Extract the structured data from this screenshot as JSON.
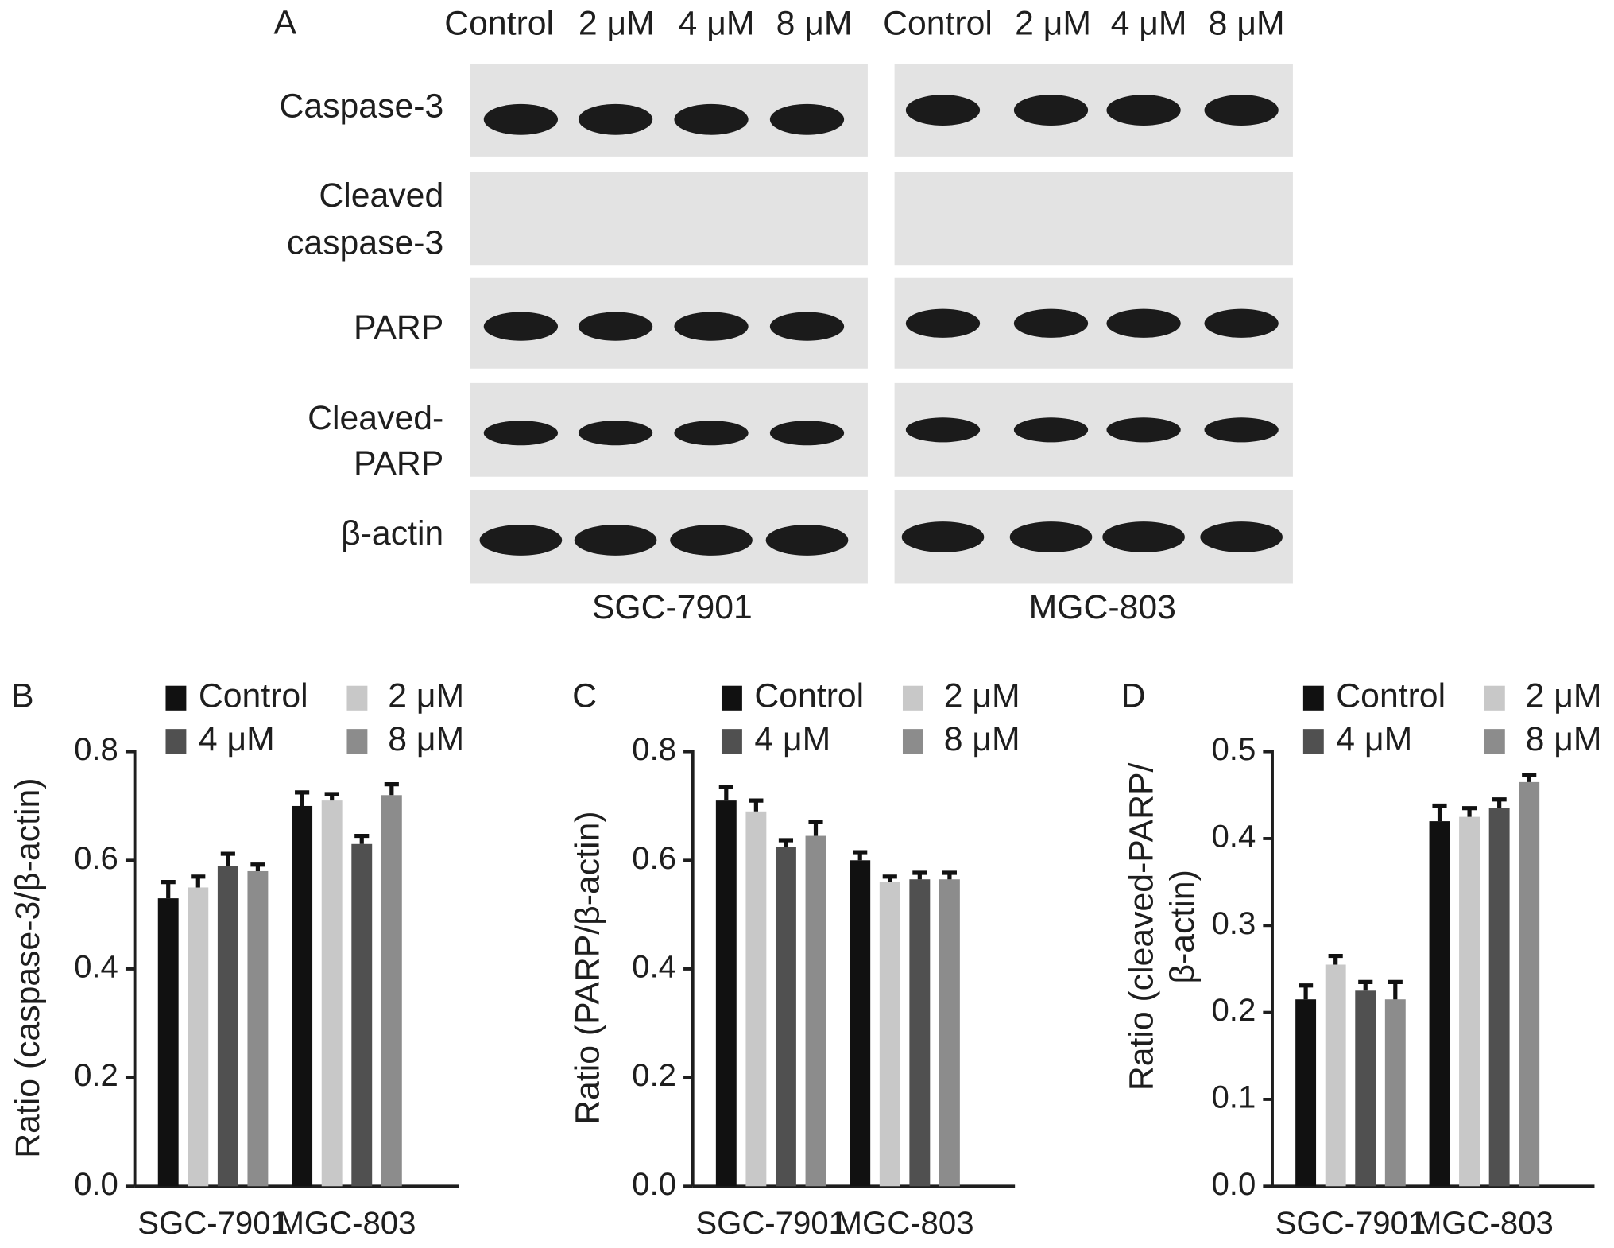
{
  "blot": {
    "panel": "A",
    "lanes": [
      "Control",
      "2 μM",
      "4 μM",
      "8 μM",
      "Control",
      "2 μM",
      "4 μM",
      "8 μM"
    ],
    "rows": [
      [
        "Caspase-3"
      ],
      [
        "Cleaved",
        "caspase-3"
      ],
      [
        "PARP"
      ],
      [
        "Cleaved-",
        "PARP"
      ],
      [
        "β-actin"
      ]
    ],
    "cell_lines": [
      "SGC-7901",
      "MGC-803"
    ]
  },
  "chart_data": [
    {
      "type": "bar",
      "panel": "B",
      "ylabel": [
        "Ratio (caspase-3/β-actin)"
      ],
      "categories": [
        "SGC-7901",
        "MGC-803"
      ],
      "series": [
        {
          "name": "Control",
          "color": "#111111",
          "values": [
            0.53,
            0.7
          ],
          "errors": [
            0.03,
            0.025
          ]
        },
        {
          "name": "2 μM",
          "color": "#c8c8c8",
          "values": [
            0.55,
            0.71
          ],
          "errors": [
            0.02,
            0.012
          ]
        },
        {
          "name": "4 μM",
          "color": "#505050",
          "values": [
            0.59,
            0.63
          ],
          "errors": [
            0.022,
            0.015
          ]
        },
        {
          "name": "8 μM",
          "color": "#8c8c8c",
          "values": [
            0.58,
            0.72
          ],
          "errors": [
            0.012,
            0.02
          ]
        }
      ],
      "ylim": [
        0,
        0.8
      ],
      "yticks": [
        {
          "value": 0,
          "label": "0.0"
        },
        0.2,
        0.4,
        0.6,
        0.8
      ]
    },
    {
      "type": "bar",
      "panel": "C",
      "ylabel": [
        "Ratio (PARP/β-actin)"
      ],
      "categories": [
        "SGC-7901",
        "MGC-803"
      ],
      "series": [
        {
          "name": "Control",
          "color": "#111111",
          "values": [
            0.71,
            0.6
          ],
          "errors": [
            0.025,
            0.015
          ]
        },
        {
          "name": "2 μM",
          "color": "#c8c8c8",
          "values": [
            0.69,
            0.56
          ],
          "errors": [
            0.02,
            0.01
          ]
        },
        {
          "name": "4 μM",
          "color": "#505050",
          "values": [
            0.625,
            0.565
          ],
          "errors": [
            0.012,
            0.012
          ]
        },
        {
          "name": "8 μM",
          "color": "#8c8c8c",
          "values": [
            0.645,
            0.565
          ],
          "errors": [
            0.025,
            0.012
          ]
        }
      ],
      "ylim": [
        0,
        0.8
      ],
      "yticks": [
        {
          "value": 0,
          "label": "0.0"
        },
        0.2,
        0.4,
        0.6,
        0.8
      ]
    },
    {
      "type": "bar",
      "panel": "D",
      "ylabel": [
        "Ratio (cleaved-PARP/",
        "β-actin)"
      ],
      "categories": [
        "SGC-7901",
        "MGC-803"
      ],
      "series": [
        {
          "name": "Control",
          "color": "#111111",
          "values": [
            0.215,
            0.42
          ],
          "errors": [
            0.016,
            0.018
          ]
        },
        {
          "name": "2 μM",
          "color": "#c8c8c8",
          "values": [
            0.255,
            0.425
          ],
          "errors": [
            0.01,
            0.01
          ]
        },
        {
          "name": "4 μM",
          "color": "#505050",
          "values": [
            0.225,
            0.435
          ],
          "errors": [
            0.01,
            0.01
          ]
        },
        {
          "name": "8 μM",
          "color": "#8c8c8c",
          "values": [
            0.215,
            0.465
          ],
          "errors": [
            0.02,
            0.008
          ]
        }
      ],
      "ylim": [
        0,
        0.5
      ],
      "yticks": [
        {
          "value": 0,
          "label": "0.0"
        },
        0.1,
        0.2,
        0.3,
        0.4,
        0.5
      ]
    }
  ]
}
